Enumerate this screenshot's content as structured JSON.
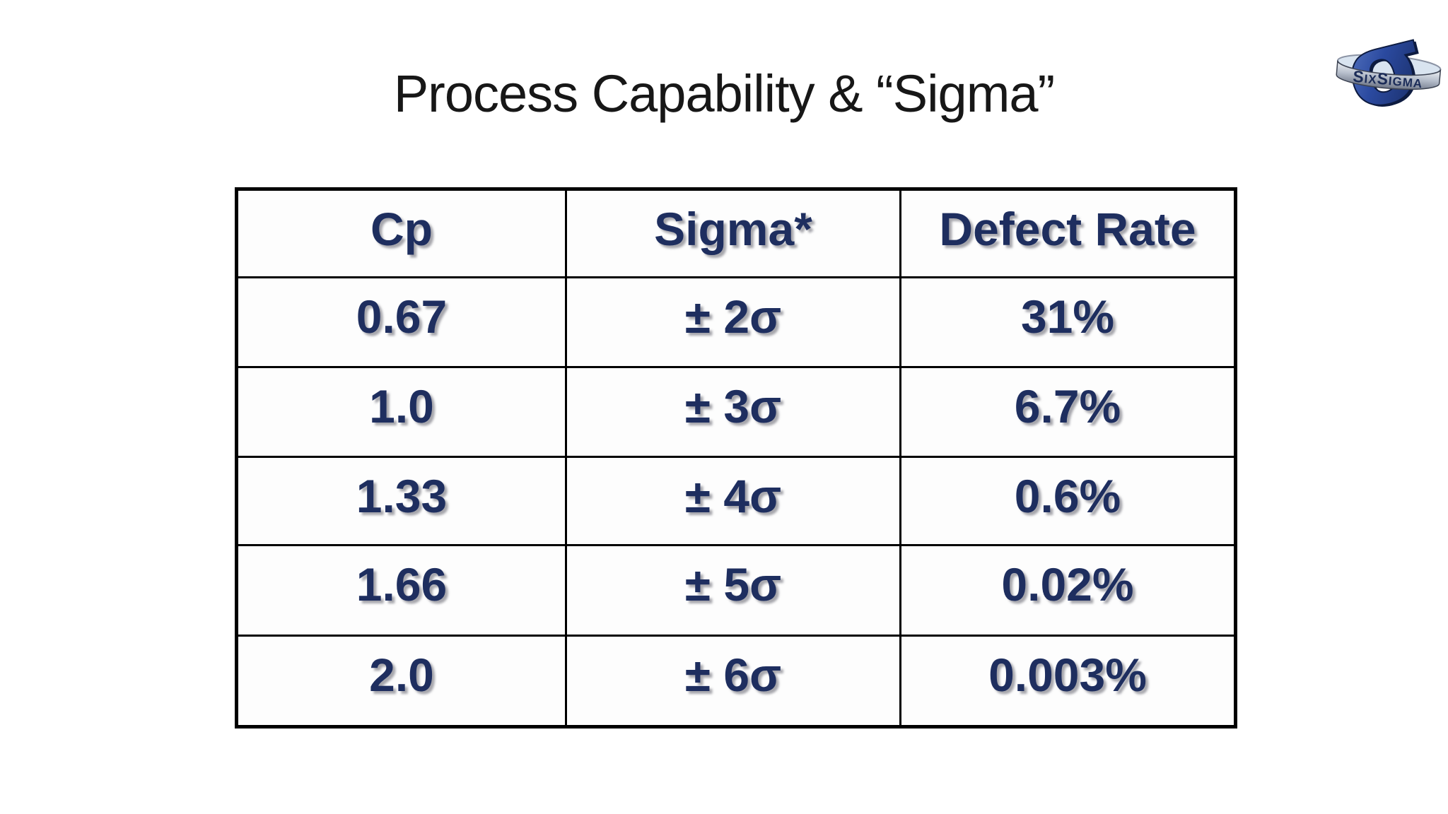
{
  "slide": {
    "title": "Process Capability & “Sigma”"
  },
  "logo": {
    "label": "Six Sigma 3D logo",
    "band_text": "SixSigma",
    "sigma_glyph": "σ",
    "colors": {
      "sigma_blue": "#2b4aa0",
      "sigma_dark": "#0d1b40",
      "band_silver": "#b7bfcc",
      "band_text_navy": "#1b2c58"
    }
  },
  "table": {
    "headers": [
      "Cp",
      "Sigma*",
      "Defect Rate"
    ],
    "rows": [
      [
        "0.67",
        "± 2σ",
        "31%"
      ],
      [
        "1.0",
        "± 3σ",
        "6.7%"
      ],
      [
        "1.33",
        "± 4σ",
        "0.6%"
      ],
      [
        "1.66",
        "± 5σ",
        "0.02%"
      ],
      [
        "2.0",
        "± 6σ",
        "0.003%"
      ]
    ],
    "text_color": "#1e2e5f",
    "border_color": "#000000"
  },
  "chart_data": {
    "type": "table",
    "title": "Process Capability & “Sigma”",
    "columns": [
      "Cp",
      "Sigma*",
      "Defect Rate"
    ],
    "rows": [
      [
        "0.67",
        "± 2σ",
        "31%"
      ],
      [
        "1.0",
        "± 3σ",
        "6.7%"
      ],
      [
        "1.33",
        "± 4σ",
        "0.6%"
      ],
      [
        "1.66",
        "± 5σ",
        "0.02%"
      ],
      [
        "2.0",
        "± 6σ",
        "0.003%"
      ]
    ]
  }
}
